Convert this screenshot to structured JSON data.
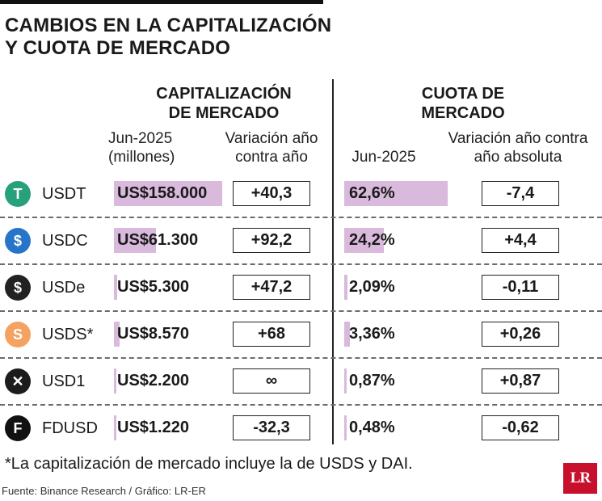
{
  "title_line1": "CAMBIOS EN LA CAPITALIZACIÓN",
  "title_line2": "Y CUOTA DE MERCADO",
  "headers": {
    "cap_line1": "CAPITALIZACIÓN",
    "cap_line2": "DE MERCADO",
    "share_line1": "CUOTA DE",
    "share_line2": "MERCADO",
    "cap_value_line1": "Jun-2025",
    "cap_value_line2": "(millones)",
    "cap_change_line1": "Variación año",
    "cap_change_line2": "contra año",
    "share_value": "Jun-2025",
    "share_change_line1": "Variación año contra",
    "share_change_line2": "año absoluta"
  },
  "colors": {
    "bar": "#d9b9dc",
    "logo": "#c8102e"
  },
  "chart_data": {
    "type": "table",
    "columns": [
      "Capitalización de mercado Jun-2025 (millones)",
      "Variación año contra año",
      "Cuota de mercado Jun-2025",
      "Variación año contra año absoluta"
    ],
    "rows": [
      {
        "coin": "USDT",
        "icon": "tether-icon",
        "icon_color": "#26a17b",
        "cap_label": "US$158.000",
        "cap_value": 158000,
        "cap_change": "+40,3",
        "share_label": "62,6%",
        "share_value": 62.6,
        "share_change": "-7,4"
      },
      {
        "coin": "USDC",
        "icon": "usdc-icon",
        "icon_color": "#2775ca",
        "cap_label": "US$61.300",
        "cap_value": 61300,
        "cap_change": "+92,2",
        "share_label": "24,2%",
        "share_value": 24.2,
        "share_change": "+4,4"
      },
      {
        "coin": "USDe",
        "icon": "usde-icon",
        "icon_color": "#222222",
        "cap_label": "US$5.300",
        "cap_value": 5300,
        "cap_change": "+47,2",
        "share_label": "2,09%",
        "share_value": 2.09,
        "share_change": "-0,11"
      },
      {
        "coin": "USDS*",
        "icon": "usds-icon",
        "icon_color": "#f4a261",
        "cap_label": "US$8.570",
        "cap_value": 8570,
        "cap_change": "+68",
        "share_label": "3,36%",
        "share_value": 3.36,
        "share_change": "+0,26"
      },
      {
        "coin": "USD1",
        "icon": "usd1-icon",
        "icon_color": "#1c1c1c",
        "cap_label": "US$2.200",
        "cap_value": 2200,
        "cap_change": "∞",
        "share_label": "0,87%",
        "share_value": 0.87,
        "share_change": "+0,87"
      },
      {
        "coin": "FDUSD",
        "icon": "fdusd-icon",
        "icon_color": "#111111",
        "cap_label": "US$1.220",
        "cap_value": 1220,
        "cap_change": "-32,3",
        "share_label": "0,48%",
        "share_value": 0.48,
        "share_change": "-0,62"
      }
    ]
  },
  "note": "*La capitalización de mercado incluye la de USDS y DAI.",
  "source": "Fuente: Binance Research / Gráfico: LR-ER",
  "logo_text": "LR"
}
